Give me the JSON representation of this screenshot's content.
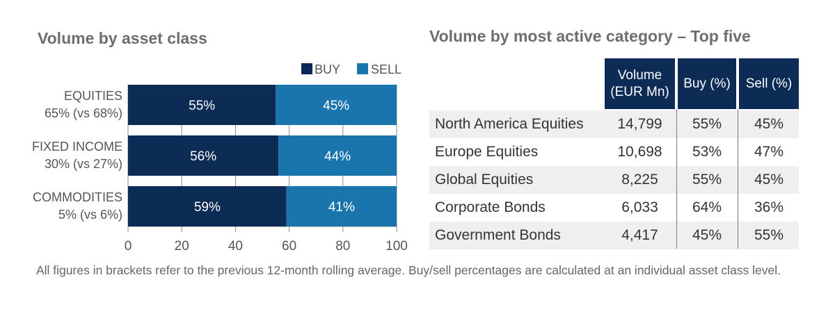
{
  "left_title": "Volume by asset class",
  "right_title": "Volume by most active category – Top five",
  "chart_data": {
    "type": "bar",
    "orientation": "horizontal",
    "stacked": true,
    "categories": [
      [
        "EQUITIES",
        "65% (vs 68%)"
      ],
      [
        "FIXED INCOME",
        "30% (vs 27%)"
      ],
      [
        "COMMODITIES",
        "5% (vs 6%)"
      ]
    ],
    "series": [
      {
        "name": "BUY",
        "color": "#0c2c56",
        "values": [
          55,
          56,
          59
        ],
        "labels": [
          "55%",
          "56%",
          "59%"
        ]
      },
      {
        "name": "SELL",
        "color": "#1a75ad",
        "values": [
          45,
          44,
          41
        ],
        "labels": [
          "45%",
          "44%",
          "41%"
        ]
      }
    ],
    "xlim": [
      0,
      100
    ],
    "xticks": [
      "0",
      "20",
      "40",
      "60",
      "80",
      "100"
    ],
    "grid": true,
    "legend": "top-right"
  },
  "table": {
    "headers": [
      "Volume\n(EUR Mn)",
      "Buy (%)",
      "Sell (%)"
    ],
    "rows": [
      {
        "name": "North America Equities",
        "volume": "14,799",
        "buy": "55%",
        "sell": "45%"
      },
      {
        "name": "Europe Equities",
        "volume": "10,698",
        "buy": "53%",
        "sell": "47%"
      },
      {
        "name": "Global Equities",
        "volume": "8,225",
        "buy": "55%",
        "sell": "45%"
      },
      {
        "name": "Corporate Bonds",
        "volume": "6,033",
        "buy": "64%",
        "sell": "36%"
      },
      {
        "name": "Government Bonds",
        "volume": "4,417",
        "buy": "45%",
        "sell": "55%"
      }
    ]
  },
  "footnote": "All figures in brackets refer to the previous 12-month rolling average. Buy/sell percentages are calculated at an individual asset class level."
}
